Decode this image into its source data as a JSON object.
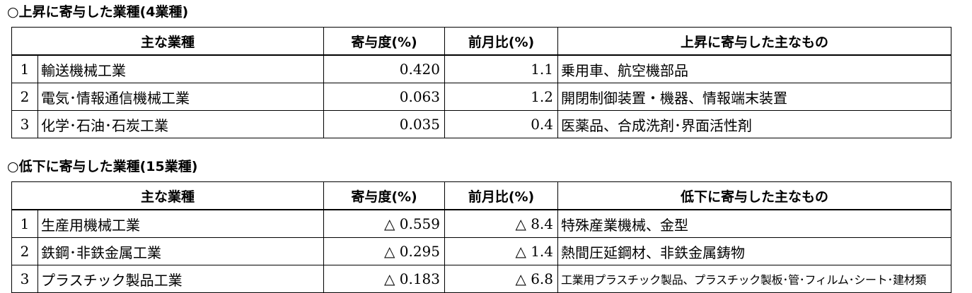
{
  "rise": {
    "title": "○上昇に寄与した業種(4業種)",
    "headers": {
      "industry": "主な業種",
      "contribution": "寄与度(%)",
      "mom": "前月比(%)",
      "items": "上昇に寄与した主なもの"
    },
    "rows": [
      {
        "rank": "1",
        "industry": "輸送機械工業",
        "contribution": "0.420",
        "mom": "1.1",
        "items": "乗用車、航空機部品"
      },
      {
        "rank": "2",
        "industry": "電気･情報通信機械工業",
        "contribution": "0.063",
        "mom": "1.2",
        "items": "開閉制御装置・機器、情報端末装置"
      },
      {
        "rank": "3",
        "industry": "化学･石油･石炭工業",
        "contribution": "0.035",
        "mom": "0.4",
        "items": "医薬品、合成洗剤･界面活性剤"
      }
    ]
  },
  "decline": {
    "title": "○低下に寄与した業種(15業種)",
    "headers": {
      "industry": "主な業種",
      "contribution": "寄与度(%)",
      "mom": "前月比(%)",
      "items": "低下に寄与した主なもの"
    },
    "rows": [
      {
        "rank": "1",
        "industry": "生産用機械工業",
        "contribution": "△ 0.559",
        "mom": "△ 8.4",
        "items": "特殊産業機械、金型"
      },
      {
        "rank": "2",
        "industry": "鉄鋼･非鉄金属工業",
        "contribution": "△ 0.295",
        "mom": "△ 1.4",
        "items": "熱間圧延鋼材、非鉄金属鋳物"
      },
      {
        "rank": "3",
        "industry": "プラスチック製品工業",
        "contribution": "△ 0.183",
        "mom": "△ 6.8",
        "items": "工業用プラスチック製品、プラスチック製板･管･フィルム･シート･建材類"
      }
    ]
  }
}
